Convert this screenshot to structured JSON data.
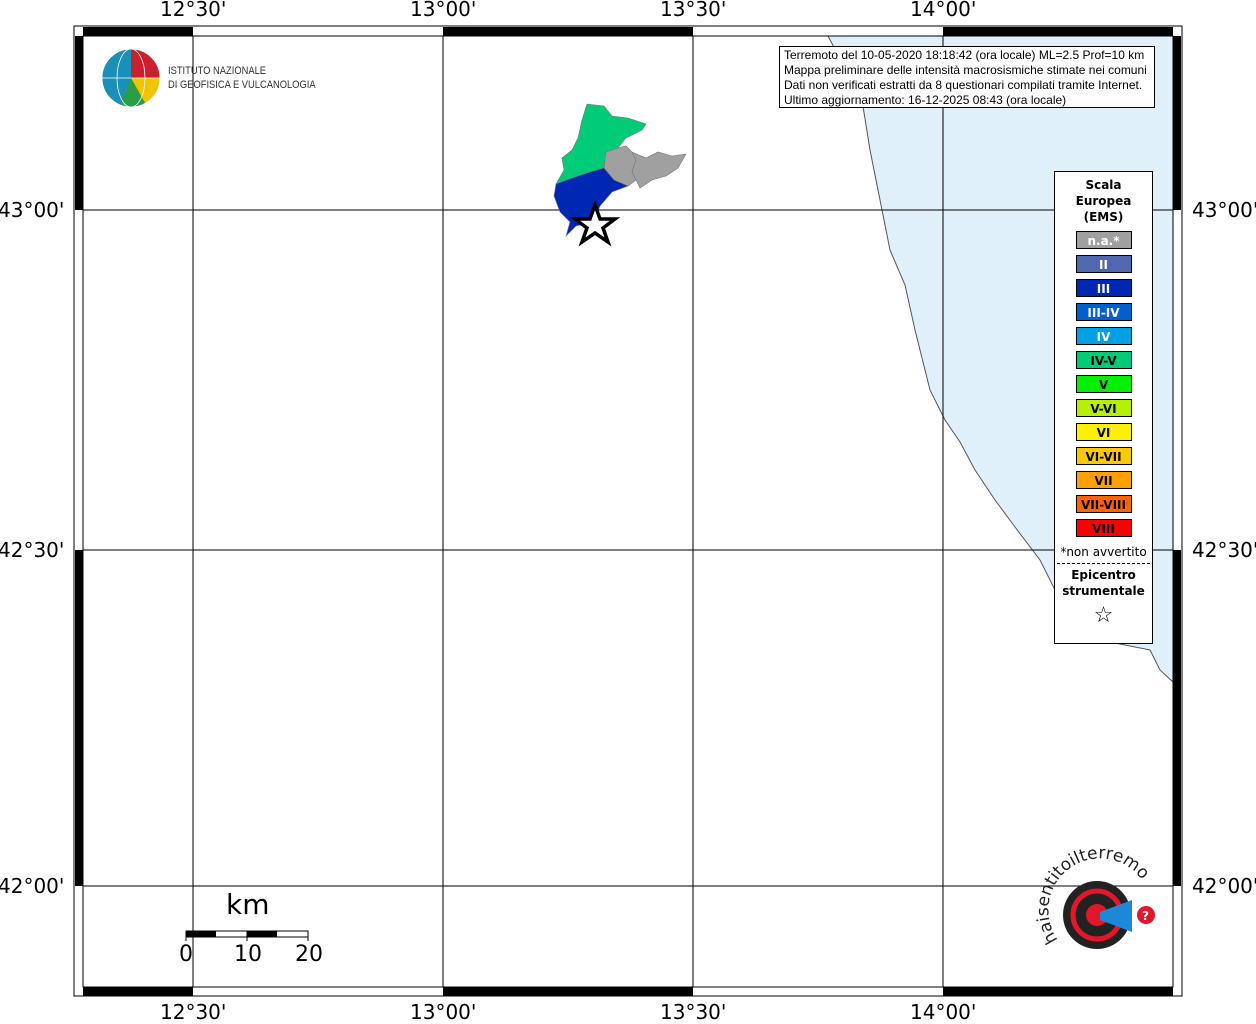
{
  "map": {
    "lon_ticks": [
      "12°30'",
      "13°00'",
      "13°30'",
      "14°00'"
    ],
    "lat_ticks": [
      "43°00'",
      "42°30'",
      "42°00'"
    ],
    "sea_color": "#dff0fb"
  },
  "info": {
    "lines": [
      "Terremoto del 10-05-2020 18:18:42 (ora locale) ML=2.5 Prof=10 km",
      "Mappa preliminare delle intensità macrosismiche stimate nei comuni",
      "Dati non verificati estratti da 8 questionari compilati tramite Internet.",
      "Ultimo aggiornamento: 16-12-2025 08:43 (ora locale)"
    ]
  },
  "institute": {
    "line1": "ISTITUTO NAZIONALE",
    "line2": "DI GEOFISICA E VULCANOLOGIA"
  },
  "legend": {
    "title": [
      "Scala",
      "Europea",
      "(EMS)"
    ],
    "items": [
      {
        "label": "n.a.*",
        "color": "#a0a0a0",
        "text": "#fff"
      },
      {
        "label": "II",
        "color": "#4f68b0",
        "text": "#fff"
      },
      {
        "label": "III",
        "color": "#0026b4",
        "text": "#fff"
      },
      {
        "label": "III-IV",
        "color": "#0060d0",
        "text": "#fff"
      },
      {
        "label": "IV",
        "color": "#00a0e6",
        "text": "#fff"
      },
      {
        "label": "IV-V",
        "color": "#00cc78",
        "text": "#000"
      },
      {
        "label": "V",
        "color": "#00f000",
        "text": "#000"
      },
      {
        "label": "V-VI",
        "color": "#b4f000",
        "text": "#000"
      },
      {
        "label": "VI",
        "color": "#fff000",
        "text": "#000"
      },
      {
        "label": "VI-VII",
        "color": "#ffc800",
        "text": "#000"
      },
      {
        "label": "VII",
        "color": "#ffa000",
        "text": "#000"
      },
      {
        "label": "VII-VIII",
        "color": "#ff6400",
        "text": "#000"
      },
      {
        "label": "VIII",
        "color": "#ff0000",
        "text": "#000"
      }
    ],
    "not_felt_note": "*non avvertito",
    "epicenter_label": [
      "Epicentro",
      "strumentale"
    ],
    "epicenter_symbol": "☆"
  },
  "scalebar": {
    "unit": "km",
    "ticks": [
      "0",
      "10",
      "20"
    ]
  },
  "site_logo": {
    "text": "www.haisentitoilterremoto.it"
  }
}
